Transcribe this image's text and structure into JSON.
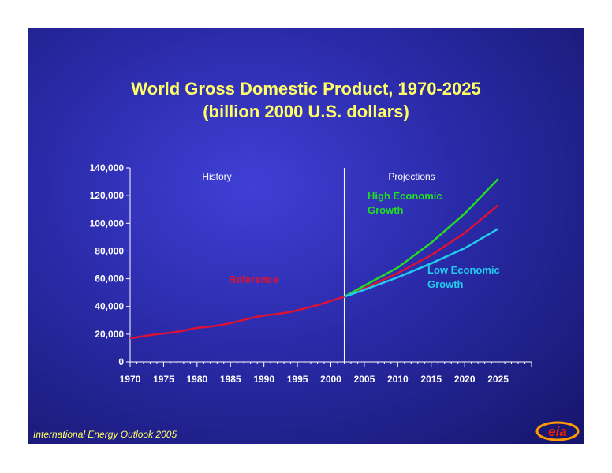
{
  "title_line1": "World Gross Domestic Product, 1970-2025",
  "title_line2": "(billion 2000 U.S. dollars)",
  "footer": "International Energy Outlook 2005",
  "logo_text": "eia",
  "colors": {
    "title": "#ffff66",
    "axis": "#ffffff",
    "reference": "#dd1133",
    "high": "#22dd22",
    "low": "#22ccee"
  },
  "chart_data": {
    "type": "line",
    "title": "World Gross Domestic Product, 1970-2025",
    "subtitle": "(billion 2000 U.S. dollars)",
    "xlim": [
      1970,
      2030
    ],
    "ylim": [
      0,
      140000
    ],
    "xticks": [
      1970,
      1975,
      1980,
      1985,
      1990,
      1995,
      2000,
      2005,
      2010,
      2015,
      2020,
      2025
    ],
    "xtick_labels": [
      "1970",
      "1975",
      "1980",
      "1985",
      "1990",
      "1995",
      "2000",
      "2005",
      "2010",
      "2015",
      "2020",
      "2025"
    ],
    "yticks": [
      0,
      20000,
      40000,
      60000,
      80000,
      100000,
      120000,
      140000
    ],
    "ytick_labels": [
      "0",
      "20,000",
      "40,000",
      "60,000",
      "80,000",
      "100,000",
      "120,000",
      "140,000"
    ],
    "history_divider_x": 2002,
    "regions": [
      {
        "label": "History"
      },
      {
        "label": "Projections"
      }
    ],
    "series": [
      {
        "name": "Reference",
        "label_lines": [
          "Reference"
        ],
        "color": "#dd1133",
        "x": [
          1970,
          1972,
          1974,
          1976,
          1978,
          1980,
          1982,
          1984,
          1986,
          1988,
          1990,
          1992,
          1994,
          1996,
          1998,
          2000,
          2002,
          2005,
          2010,
          2015,
          2020,
          2025
        ],
        "y": [
          17000,
          18500,
          20000,
          21000,
          22500,
          24500,
          25500,
          27000,
          29000,
          31500,
          33500,
          34500,
          36000,
          38500,
          41000,
          44000,
          47000,
          53000,
          64000,
          77000,
          93000,
          113000
        ]
      },
      {
        "name": "High Economic Growth",
        "label_lines": [
          "High Economic",
          "Growth"
        ],
        "color": "#22dd22",
        "x": [
          2002,
          2005,
          2010,
          2015,
          2020,
          2025
        ],
        "y": [
          47000,
          55000,
          68000,
          86000,
          107000,
          132000
        ]
      },
      {
        "name": "Low Economic Growth",
        "label_lines": [
          "Low Economic",
          "Growth"
        ],
        "color": "#22ccee",
        "x": [
          2002,
          2005,
          2010,
          2015,
          2020,
          2025
        ],
        "y": [
          47000,
          52000,
          61000,
          71000,
          82000,
          96000
        ]
      }
    ]
  }
}
